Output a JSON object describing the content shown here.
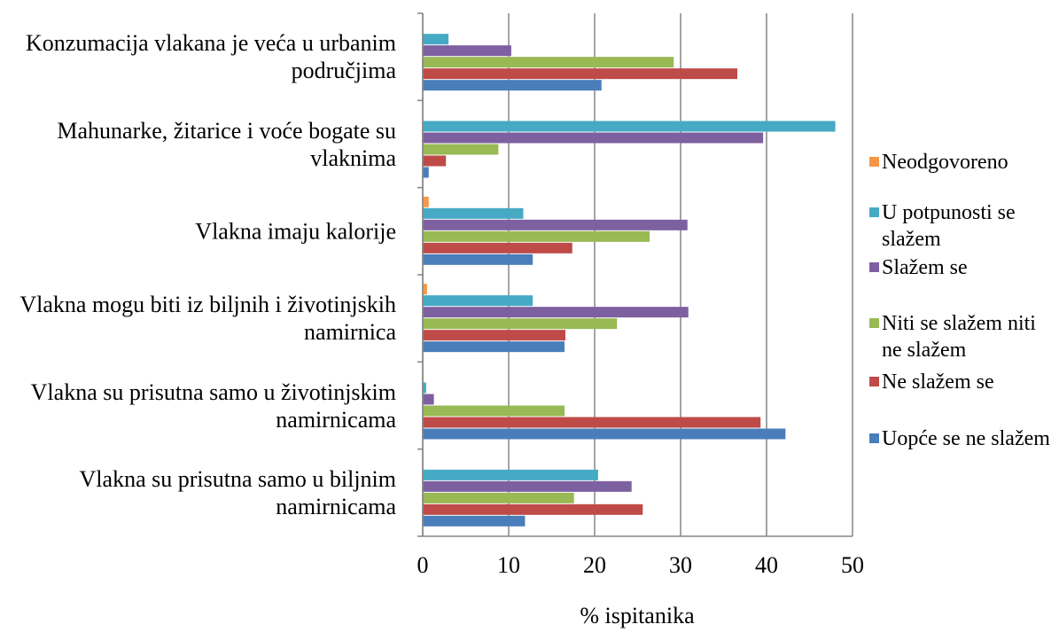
{
  "chart_data": {
    "type": "bar",
    "orientation": "horizontal",
    "x_label": "% ispitanika",
    "categories": [
      "Konzumacija vlakana je veća u urbanim područjima",
      "Mahunarke, žitarice i voće bogate su vlaknima",
      "Vlakna imaju kalorije",
      "Vlakna mogu biti iz biljnih i životinjskih namirnica",
      "Vlakna su prisutna samo u životinjskim namirnicama",
      "Vlakna su prisutna samo u biljnim namirnicama"
    ],
    "series": [
      {
        "name": "Neodgovoreno",
        "color": "#f79646",
        "values": [
          0,
          0,
          0.7,
          0.5,
          0.1,
          0.1
        ]
      },
      {
        "name": "U potpunosti se slažem",
        "color": "#46aac5",
        "values": [
          3,
          48,
          11.7,
          12.8,
          0.4,
          20.4
        ]
      },
      {
        "name": "Slažem se",
        "color": "#7d60a0",
        "values": [
          10.3,
          39.6,
          30.8,
          30.9,
          1.3,
          24.3
        ]
      },
      {
        "name": "Niti se slažem niti ne slažem",
        "color": "#98b954",
        "values": [
          29.2,
          8.8,
          26.4,
          22.6,
          16.5,
          17.6
        ]
      },
      {
        "name": "Ne slažem se",
        "color": "#be4b48",
        "values": [
          36.6,
          2.7,
          17.4,
          16.6,
          39.3,
          25.6
        ]
      },
      {
        "name": "Uopće se ne slažem",
        "color": "#4a7ebb",
        "values": [
          20.8,
          0.7,
          12.8,
          16.5,
          42.2,
          11.9
        ]
      }
    ],
    "xlim": [
      0,
      50
    ],
    "xticks": [
      0,
      10,
      20,
      30,
      40,
      50
    ],
    "grid": true,
    "legend": "right"
  }
}
